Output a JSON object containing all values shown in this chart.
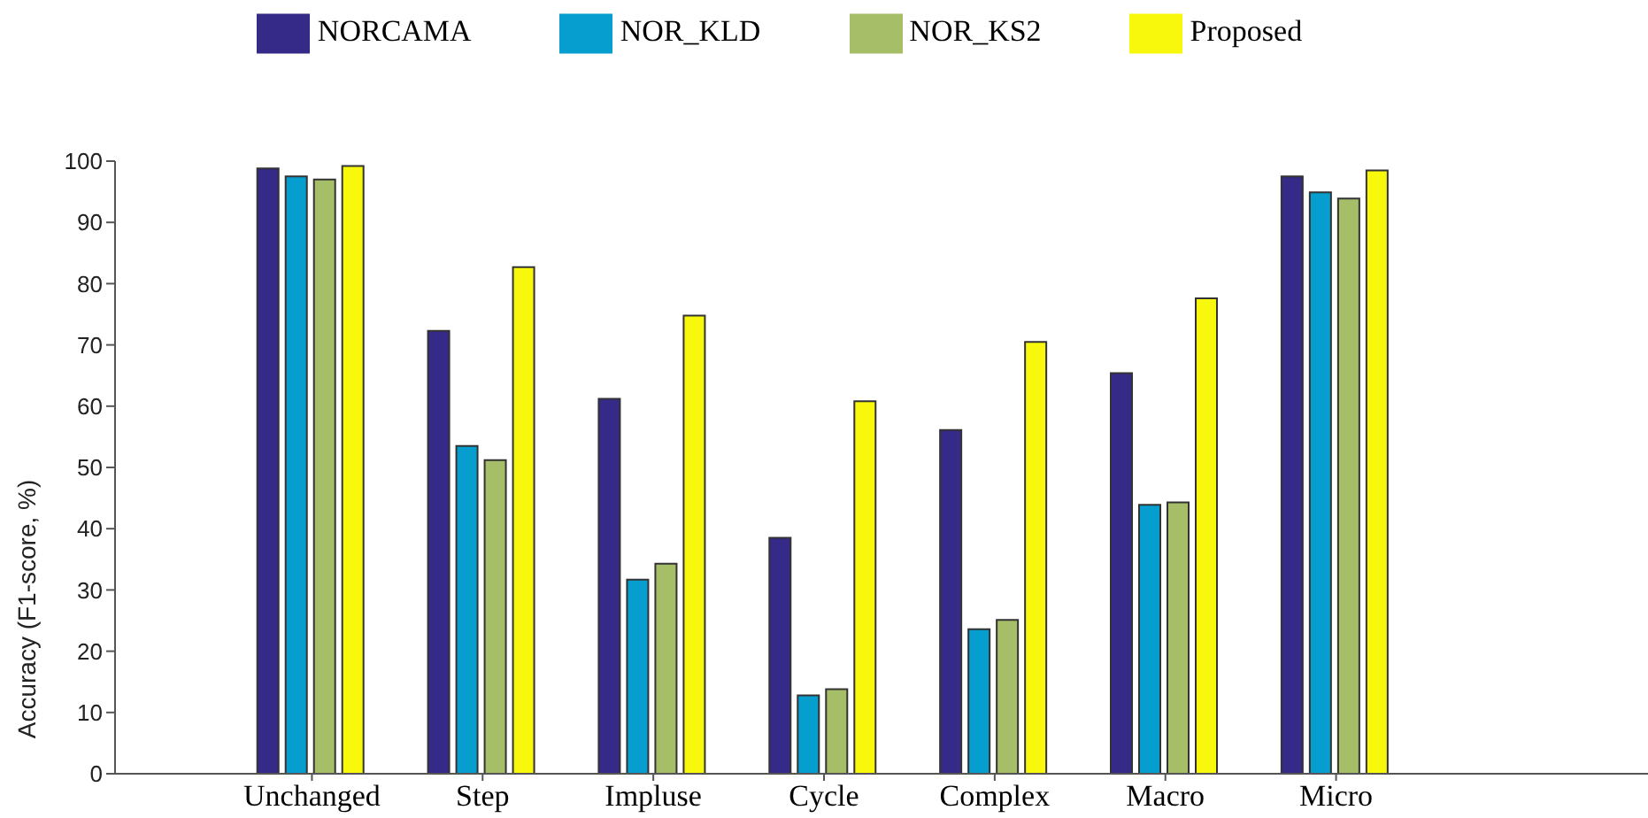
{
  "chart_data": {
    "type": "bar",
    "ylabel": "Accuracy (F1-score, %)",
    "categories": [
      "Unchanged",
      "Step",
      "Impluse",
      "Cycle",
      "Complex",
      "Macro",
      "Micro"
    ],
    "series": [
      {
        "name": "NORCAMA",
        "color": "#352a87",
        "values": [
          98.8,
          72.3,
          61.2,
          38.5,
          56.1,
          65.4,
          97.5
        ]
      },
      {
        "name": "NOR_KLD",
        "color": "#069ecf",
        "values": [
          97.5,
          53.5,
          31.7,
          12.8,
          23.6,
          43.9,
          94.9
        ]
      },
      {
        "name": "NOR_KS2",
        "color": "#a5be67",
        "values": [
          97.0,
          51.2,
          34.3,
          13.8,
          25.1,
          44.3,
          93.9
        ]
      },
      {
        "name": "Proposed",
        "color": "#f8f80d",
        "values": [
          99.2,
          82.7,
          74.8,
          60.8,
          70.5,
          77.6,
          98.5
        ]
      }
    ],
    "ylim": [
      0,
      100
    ],
    "yticks": [
      0,
      10,
      20,
      30,
      40,
      50,
      60,
      70,
      80,
      90,
      100
    ],
    "grid": false,
    "legend": "top"
  }
}
